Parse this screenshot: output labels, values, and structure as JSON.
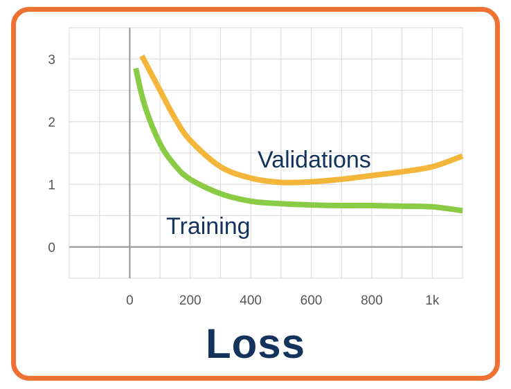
{
  "chart_data": {
    "type": "line",
    "title": "Loss",
    "xlabel": "",
    "ylabel": "",
    "x_ticks": [
      {
        "value": 0,
        "label": "0"
      },
      {
        "value": 200,
        "label": "200"
      },
      {
        "value": 400,
        "label": "400"
      },
      {
        "value": 600,
        "label": "600"
      },
      {
        "value": 800,
        "label": "800"
      },
      {
        "value": 1000,
        "label": "1k"
      }
    ],
    "y_ticks": [
      {
        "value": 0,
        "label": "0"
      },
      {
        "value": 1,
        "label": "1"
      },
      {
        "value": 2,
        "label": "2"
      },
      {
        "value": 3,
        "label": "3"
      }
    ],
    "xlim": [
      -200,
      1100
    ],
    "ylim": [
      -0.5,
      3.5
    ],
    "grid": true,
    "legend": "inline",
    "series": [
      {
        "name": "Validations",
        "color": "#f3b53a",
        "x": [
          40,
          100,
          150,
          200,
          300,
          400,
          500,
          600,
          700,
          800,
          900,
          1000,
          1100
        ],
        "y": [
          3.05,
          2.5,
          2.05,
          1.7,
          1.28,
          1.1,
          1.03,
          1.04,
          1.08,
          1.14,
          1.2,
          1.28,
          1.45
        ]
      },
      {
        "name": "Training",
        "color": "#8acb45",
        "x": [
          20,
          50,
          100,
          150,
          200,
          300,
          400,
          500,
          600,
          700,
          800,
          900,
          1000,
          1100
        ],
        "y": [
          2.85,
          2.25,
          1.65,
          1.3,
          1.08,
          0.85,
          0.73,
          0.69,
          0.67,
          0.66,
          0.66,
          0.65,
          0.64,
          0.58
        ]
      }
    ]
  }
}
